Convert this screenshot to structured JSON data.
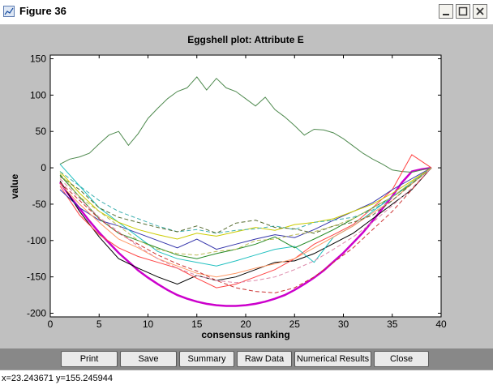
{
  "window": {
    "title": "Figure 36"
  },
  "toolbar": {
    "buttons": [
      "Print",
      "Save",
      "Summary",
      "Raw Data",
      "Numerical Results",
      "Close"
    ]
  },
  "status": {
    "text": "x=23.243671  y=155.245944"
  },
  "chart_data": {
    "type": "line",
    "title": "Eggshell plot: Attribute E",
    "xlabel": "consensus ranking",
    "ylabel": "value",
    "xlim": [
      0,
      40
    ],
    "ylim": [
      -205,
      155
    ],
    "xticks": [
      0,
      5,
      10,
      15,
      20,
      25,
      30,
      35,
      40
    ],
    "yticks": [
      150,
      100,
      50,
      0,
      -50,
      -100,
      -150,
      -200
    ],
    "grid": false,
    "series": [
      {
        "color": "#cc00cc",
        "style": "solid",
        "emphasis": true,
        "x": [
          1,
          2,
          3,
          4,
          5,
          6,
          7,
          8,
          9,
          10,
          11,
          12,
          13,
          14,
          15,
          16,
          17,
          18,
          19,
          20,
          21,
          22,
          23,
          24,
          25,
          26,
          27,
          28,
          29,
          30,
          31,
          32,
          33,
          34,
          35,
          36,
          37,
          38,
          39
        ],
        "y": [
          -20,
          -39,
          -56,
          -73,
          -89,
          -103,
          -117,
          -129,
          -141,
          -151,
          -160,
          -168,
          -175,
          -180,
          -184,
          -187,
          -189,
          -190,
          -190,
          -189,
          -187,
          -184,
          -180,
          -175,
          -168,
          -160,
          -151,
          -141,
          -129,
          -117,
          -103,
          -89,
          -73,
          -56,
          -39,
          -20,
          -5,
          -2,
          0
        ]
      },
      {
        "color": "#4f8a4f",
        "style": "solid",
        "x": [
          1,
          2,
          3,
          4,
          5,
          6,
          7,
          8,
          9,
          10,
          11,
          12,
          13,
          14,
          15,
          16,
          17,
          18,
          19,
          20,
          21,
          22,
          23,
          24,
          25,
          26,
          27,
          28,
          29,
          30,
          31,
          32,
          33,
          34,
          35,
          36,
          37,
          38,
          39
        ],
        "y": [
          5,
          12,
          15,
          20,
          33,
          45,
          50,
          31,
          47,
          68,
          82,
          95,
          105,
          110,
          125,
          107,
          123,
          110,
          105,
          95,
          85,
          97,
          80,
          70,
          58,
          45,
          53,
          52,
          48,
          40,
          30,
          20,
          12,
          5,
          -3,
          -5,
          -6,
          -3,
          0
        ]
      },
      {
        "color": "#000000",
        "style": "solid",
        "x": [
          1,
          3,
          5,
          7,
          9,
          11,
          13,
          15,
          17,
          19,
          21,
          23,
          25,
          27,
          29,
          31,
          33,
          35,
          37,
          39
        ],
        "y": [
          -18,
          -60,
          -95,
          -125,
          -138,
          -150,
          -160,
          -148,
          -155,
          -150,
          -140,
          -130,
          -128,
          -118,
          -104,
          -90,
          -70,
          -50,
          -30,
          0
        ]
      },
      {
        "color": "#ff4444",
        "style": "solid",
        "x": [
          1,
          3,
          5,
          7,
          9,
          11,
          13,
          15,
          17,
          19,
          21,
          23,
          25,
          27,
          29,
          31,
          33,
          35,
          37,
          39
        ],
        "y": [
          -25,
          -65,
          -92,
          -110,
          -122,
          -130,
          -138,
          -152,
          -165,
          -160,
          -150,
          -140,
          -125,
          -105,
          -92,
          -78,
          -55,
          -30,
          18,
          0
        ]
      },
      {
        "color": "#3333aa",
        "style": "solid",
        "x": [
          1,
          3,
          5,
          7,
          9,
          11,
          13,
          15,
          17,
          19,
          21,
          23,
          25,
          27,
          29,
          31,
          33,
          35,
          37,
          39
        ],
        "y": [
          -30,
          -55,
          -72,
          -80,
          -90,
          -100,
          -110,
          -98,
          -112,
          -105,
          -98,
          -92,
          -96,
          -85,
          -72,
          -60,
          -48,
          -30,
          -15,
          0
        ]
      },
      {
        "color": "#20c0c0",
        "style": "solid",
        "x": [
          1,
          3,
          5,
          7,
          9,
          11,
          13,
          15,
          17,
          19,
          21,
          23,
          25,
          27,
          29,
          31,
          33,
          35,
          37,
          39
        ],
        "y": [
          5,
          -25,
          -55,
          -75,
          -95,
          -115,
          -125,
          -130,
          -135,
          -128,
          -120,
          -112,
          -108,
          -130,
          -95,
          -80,
          -60,
          -40,
          -20,
          0
        ]
      },
      {
        "color": "#228822",
        "style": "solid",
        "x": [
          1,
          3,
          5,
          7,
          9,
          11,
          13,
          15,
          17,
          19,
          21,
          23,
          25,
          27,
          29,
          31,
          33,
          35,
          37,
          39
        ],
        "y": [
          -10,
          -40,
          -70,
          -90,
          -100,
          -110,
          -120,
          -125,
          -118,
          -112,
          -105,
          -95,
          -110,
          -98,
          -85,
          -70,
          -55,
          -40,
          -22,
          0
        ]
      },
      {
        "color": "#cccc00",
        "style": "solid",
        "x": [
          1,
          3,
          5,
          7,
          9,
          11,
          13,
          15,
          17,
          19,
          21,
          23,
          25,
          27,
          29,
          31,
          33,
          35,
          37,
          39
        ],
        "y": [
          -5,
          -35,
          -60,
          -75,
          -85,
          -92,
          -98,
          -90,
          -94,
          -88,
          -82,
          -86,
          -78,
          -75,
          -70,
          -60,
          -50,
          -35,
          -18,
          0
        ]
      },
      {
        "color": "#ff9966",
        "style": "solid",
        "x": [
          1,
          3,
          5,
          7,
          9,
          11,
          13,
          15,
          17,
          19,
          21,
          23,
          25,
          27,
          29,
          31,
          33,
          35,
          37,
          39
        ],
        "y": [
          -22,
          -50,
          -75,
          -98,
          -110,
          -125,
          -135,
          -145,
          -150,
          -145,
          -138,
          -132,
          -125,
          -110,
          -95,
          -80,
          -62,
          -45,
          -22,
          0
        ]
      },
      {
        "color": "#3fb0b0",
        "style": "dashed",
        "x": [
          1,
          3,
          5,
          7,
          9,
          11,
          13,
          15,
          17,
          19,
          21,
          23,
          25,
          27,
          29,
          31,
          33,
          35,
          37,
          39
        ],
        "y": [
          -5,
          -25,
          -45,
          -60,
          -70,
          -80,
          -88,
          -85,
          -90,
          -86,
          -84,
          -80,
          -85,
          -75,
          -72,
          -68,
          -58,
          -40,
          -20,
          0
        ]
      },
      {
        "color": "#556b2f",
        "style": "dashed",
        "x": [
          1,
          3,
          5,
          7,
          9,
          11,
          13,
          15,
          17,
          19,
          21,
          23,
          25,
          27,
          29,
          31,
          33,
          35,
          37,
          39
        ],
        "y": [
          -12,
          -30,
          -55,
          -68,
          -75,
          -82,
          -88,
          -80,
          -90,
          -76,
          -72,
          -82,
          -84,
          -90,
          -80,
          -75,
          -65,
          -45,
          -22,
          0
        ]
      },
      {
        "color": "#cc3333",
        "style": "dashed",
        "x": [
          1,
          3,
          5,
          7,
          9,
          11,
          13,
          15,
          17,
          19,
          21,
          23,
          25,
          27,
          29,
          31,
          33,
          35,
          37,
          39
        ],
        "y": [
          -20,
          -45,
          -70,
          -90,
          -105,
          -120,
          -132,
          -142,
          -155,
          -165,
          -170,
          -172,
          -165,
          -150,
          -130,
          -110,
          -85,
          -60,
          -30,
          0
        ]
      },
      {
        "color": "#bbbb55",
        "style": "dashed",
        "x": [
          1,
          3,
          5,
          7,
          9,
          11,
          13,
          15,
          17,
          19,
          21,
          23,
          25,
          27,
          29,
          31,
          33,
          35,
          37,
          39
        ],
        "y": [
          -8,
          -40,
          -60,
          -80,
          -100,
          -112,
          -118,
          -120,
          -115,
          -112,
          -100,
          -98,
          -92,
          -88,
          -80,
          -70,
          -55,
          -40,
          -20,
          0
        ]
      },
      {
        "color": "#dd88aa",
        "style": "dashed",
        "x": [
          1,
          3,
          5,
          7,
          9,
          11,
          13,
          15,
          17,
          19,
          21,
          23,
          25,
          27,
          29,
          31,
          33,
          35,
          37,
          39
        ],
        "y": [
          -15,
          -42,
          -68,
          -88,
          -108,
          -125,
          -138,
          -148,
          -155,
          -158,
          -155,
          -150,
          -140,
          -128,
          -112,
          -95,
          -75,
          -52,
          -28,
          0
        ]
      }
    ]
  }
}
